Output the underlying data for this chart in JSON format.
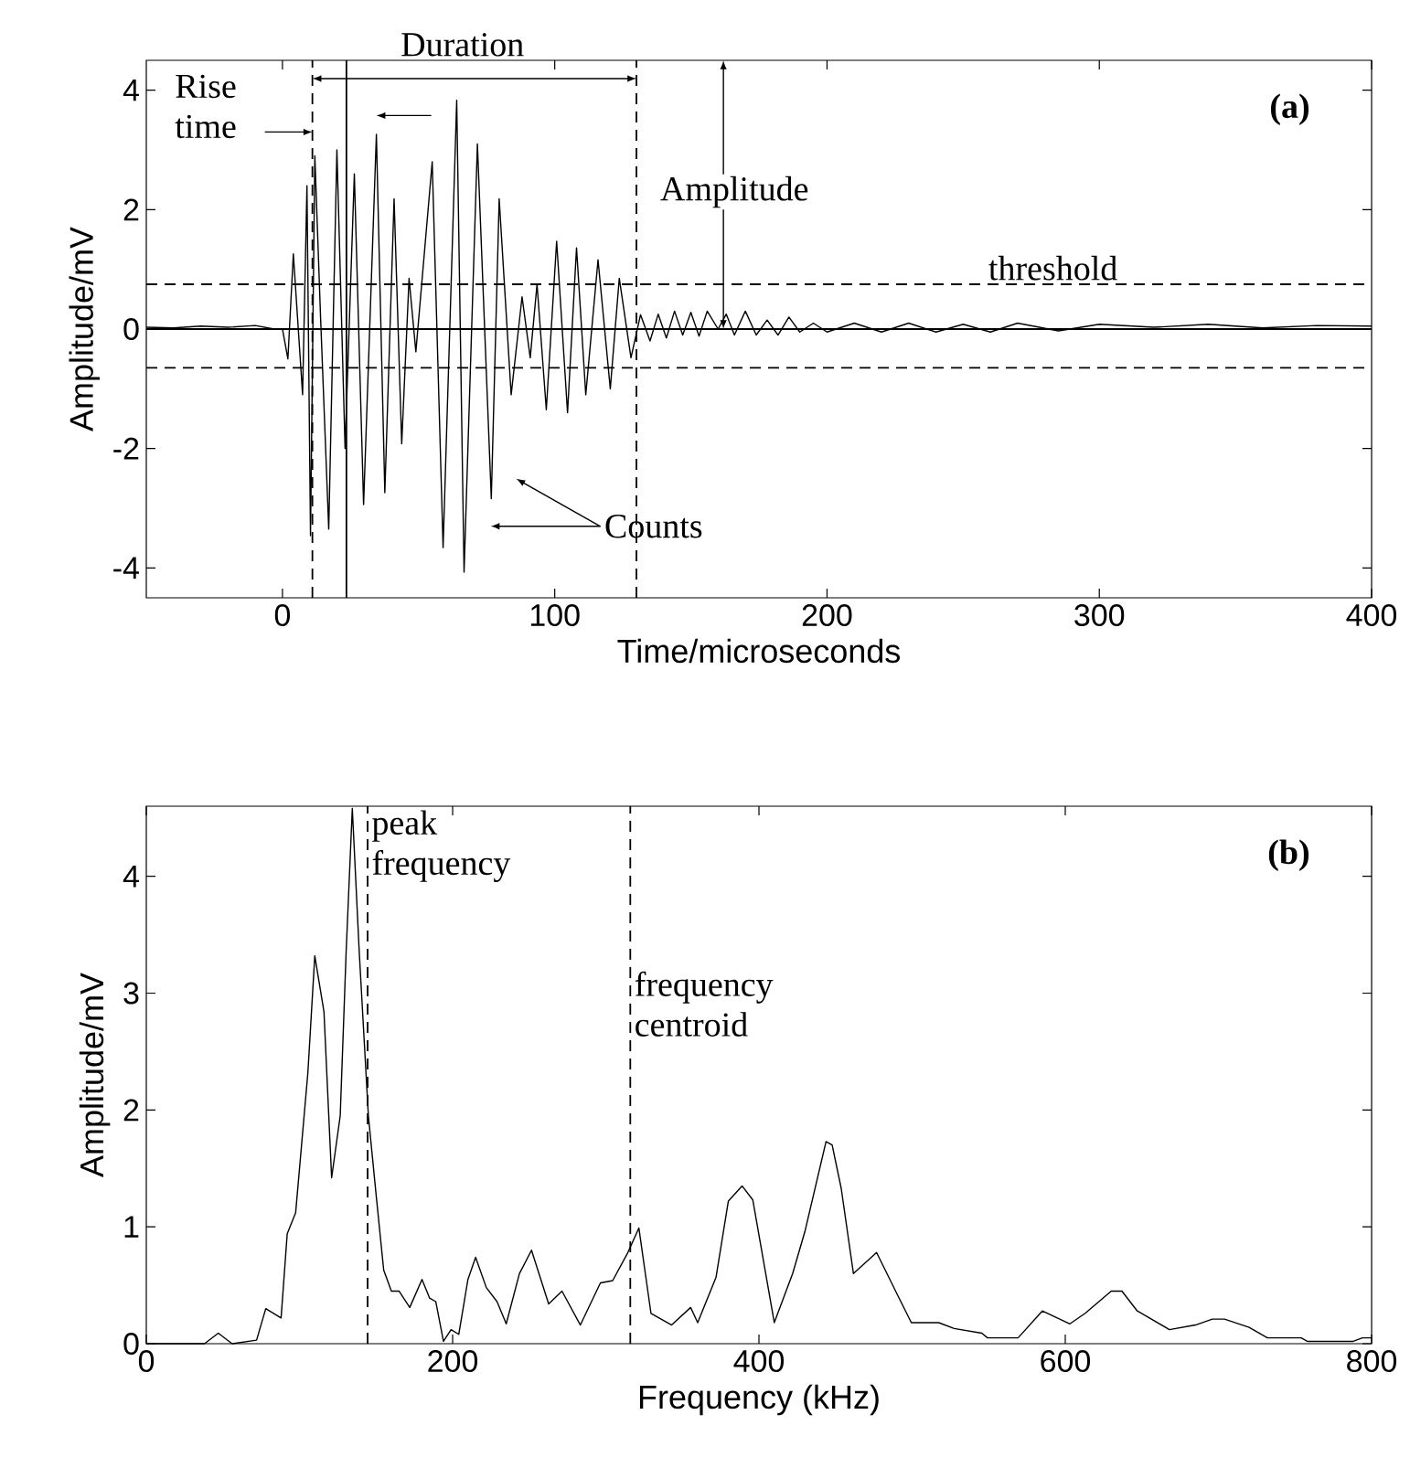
{
  "chart_data": [
    {
      "type": "line",
      "xlabel": "Time/microseconds",
      "ylabel": "Amplitude/mV",
      "color": "#000000",
      "xlim": [
        -50,
        400
      ],
      "ylim": [
        -4.5,
        4.5
      ],
      "xticks": [
        0,
        100,
        200,
        300,
        400
      ],
      "yticks": [
        -4,
        -2,
        0,
        2,
        4
      ],
      "x": [
        -50,
        -40,
        -30,
        -20,
        -10,
        -3,
        0,
        2,
        4,
        7.4,
        9,
        10.3,
        11.9,
        14,
        17,
        20,
        23,
        26.4,
        29.8,
        34.5,
        37.6,
        41,
        43.8,
        46.5,
        49,
        55,
        59,
        64,
        66.7,
        71.6,
        76.7,
        79.6,
        84,
        88,
        91,
        93.5,
        96.9,
        100.7,
        104.7,
        108,
        111.4,
        115.9,
        120.4,
        123.7,
        128,
        131.5,
        135,
        138,
        141,
        144,
        147,
        150,
        153,
        156,
        160,
        163,
        166,
        170,
        174,
        178,
        182,
        186,
        190,
        195,
        200,
        210,
        220,
        230,
        240,
        250,
        260,
        270,
        285,
        300,
        320,
        340,
        360,
        380,
        400
      ],
      "values": [
        0.03,
        0.02,
        0.05,
        0.03,
        0.06,
        0.0,
        0.0,
        -0.5,
        1.26,
        -1.1,
        2.4,
        -3.46,
        2.9,
        0.2,
        -3.35,
        3.0,
        -2.0,
        2.6,
        -2.94,
        3.26,
        -2.74,
        2.18,
        -1.92,
        0.85,
        -0.38,
        2.8,
        -3.66,
        3.83,
        -4.07,
        3.1,
        -2.84,
        2.18,
        -1.1,
        0.54,
        -0.48,
        0.75,
        -1.35,
        1.47,
        -1.4,
        1.36,
        -1.1,
        1.16,
        -1.0,
        0.85,
        -0.48,
        0.24,
        -0.2,
        0.25,
        -0.15,
        0.3,
        -0.1,
        0.28,
        -0.12,
        0.3,
        0.0,
        0.25,
        -0.1,
        0.3,
        -0.1,
        0.15,
        -0.1,
        0.2,
        -0.05,
        0.1,
        -0.05,
        0.1,
        -0.05,
        0.1,
        -0.05,
        0.08,
        -0.05,
        0.1,
        -0.03,
        0.08,
        0.03,
        0.08,
        0.02,
        0.06,
        0.05
      ],
      "ref_lines": [
        {
          "axis": "y",
          "value": 0,
          "line_style": "solid"
        },
        {
          "axis": "y",
          "value": 0.75,
          "label": "threshold",
          "line_style": "dashed"
        },
        {
          "axis": "y",
          "value": -0.65,
          "line_style": "dashed"
        },
        {
          "axis": "x",
          "value": 11,
          "line_style": "dashed"
        },
        {
          "axis": "x",
          "value": 130,
          "line_style": "dashed"
        },
        {
          "axis": "x",
          "value": 23.5,
          "line_style": "solid"
        }
      ],
      "annotations": [
        "(a)",
        {
          "text": "Rise time",
          "x": 11,
          "y": 3.3
        },
        "Duration",
        "Amplitude",
        "Counts"
      ]
    },
    {
      "type": "line",
      "xlabel": "Frequency (kHz)",
      "ylabel": "Amplitude/mV",
      "color": "#000000",
      "xlim": [
        0,
        800
      ],
      "ylim": [
        0,
        4.6
      ],
      "xticks": [
        0,
        200,
        400,
        600,
        800
      ],
      "yticks": [
        0,
        1,
        2,
        3,
        4
      ],
      "x": [
        0,
        38,
        47,
        56,
        72,
        78,
        88,
        92,
        97.5,
        105.5,
        110,
        116,
        121,
        126.6,
        130.5,
        134.5,
        139,
        145,
        150,
        155,
        160,
        165,
        172,
        180,
        185,
        189,
        194,
        199,
        204,
        210,
        215,
        222,
        229,
        235,
        243.6,
        251.5,
        262.7,
        271.4,
        283.4,
        296.5,
        304.5,
        314.4,
        321.6,
        329.5,
        343,
        355.4,
        360,
        372,
        380,
        389,
        396,
        410,
        422,
        430,
        443.8,
        447.8,
        453.7,
        461.7,
        476.8,
        489.6,
        499.5,
        517.4,
        527.4,
        545.5,
        549.2,
        569.2,
        585,
        603,
        613,
        630,
        637,
        647,
        655,
        668,
        685,
        696,
        704,
        720,
        732,
        754,
        758,
        788,
        794,
        800
      ],
      "values": [
        0,
        0,
        0.09,
        0,
        0.03,
        0.3,
        0.22,
        0.94,
        1.12,
        2.32,
        3.32,
        2.84,
        1.42,
        1.95,
        3.36,
        4.58,
        3.36,
        1.95,
        1.28,
        0.63,
        0.45,
        0.45,
        0.31,
        0.55,
        0.39,
        0.36,
        0.02,
        0.12,
        0.08,
        0.55,
        0.74,
        0.48,
        0.36,
        0.17,
        0.6,
        0.8,
        0.34,
        0.45,
        0.16,
        0.52,
        0.54,
        0.78,
        0.99,
        0.26,
        0.16,
        0.31,
        0.18,
        0.57,
        1.22,
        1.35,
        1.23,
        0.18,
        0.6,
        0.96,
        1.73,
        1.7,
        1.33,
        0.6,
        0.78,
        0.44,
        0.18,
        0.18,
        0.13,
        0.09,
        0.05,
        0.05,
        0.28,
        0.17,
        0.26,
        0.45,
        0.45,
        0.28,
        0.22,
        0.12,
        0.16,
        0.21,
        0.21,
        0.14,
        0.05,
        0.05,
        0.02,
        0.02,
        0.05,
        0.05
      ],
      "ref_lines": [
        {
          "axis": "x",
          "value": 144.5,
          "label": "peak frequency",
          "line_style": "dashed"
        },
        {
          "axis": "x",
          "value": 316,
          "label": "frequency centroid",
          "line_style": "dashed"
        }
      ],
      "annotations": [
        "(b)"
      ]
    }
  ]
}
